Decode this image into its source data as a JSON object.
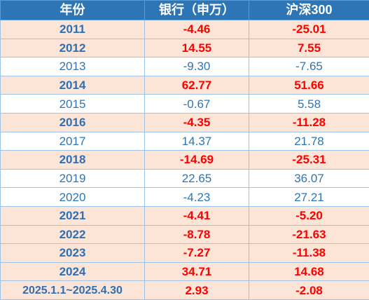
{
  "headers": [
    "年份",
    "银行（申万）",
    "沪深300"
  ],
  "rows": [
    {
      "year": "2011",
      "bank": "-4.46",
      "csi300": "-25.01",
      "highlight": true
    },
    {
      "year": "2012",
      "bank": "14.55",
      "csi300": "7.55",
      "highlight": true
    },
    {
      "year": "2013",
      "bank": "-9.30",
      "csi300": "-7.65",
      "highlight": false
    },
    {
      "year": "2014",
      "bank": "62.77",
      "csi300": "51.66",
      "highlight": true
    },
    {
      "year": "2015",
      "bank": "-0.67",
      "csi300": "5.58",
      "highlight": false
    },
    {
      "year": "2016",
      "bank": "-4.35",
      "csi300": "-11.28",
      "highlight": true
    },
    {
      "year": "2017",
      "bank": "14.37",
      "csi300": "21.78",
      "highlight": false
    },
    {
      "year": "2018",
      "bank": "-14.69",
      "csi300": "-25.31",
      "highlight": true
    },
    {
      "year": "2019",
      "bank": "22.65",
      "csi300": "36.07",
      "highlight": false
    },
    {
      "year": "2020",
      "bank": "-4.23",
      "csi300": "27.21",
      "highlight": false
    },
    {
      "year": "2021",
      "bank": "-4.41",
      "csi300": "-5.20",
      "highlight": true
    },
    {
      "year": "2022",
      "bank": "-8.78",
      "csi300": "-21.63",
      "highlight": true
    },
    {
      "year": "2023",
      "bank": "-7.27",
      "csi300": "-11.38",
      "highlight": true
    },
    {
      "year": "2024",
      "bank": "34.71",
      "csi300": "14.68",
      "highlight": true
    },
    {
      "year": "2025.1.1~2025.4.30",
      "bank": "2.93",
      "csi300": "-2.08",
      "highlight": true
    }
  ],
  "colors": {
    "header_bg": "#2e75b6",
    "highlight_row_bg": "#fce4d6",
    "highlight_value_text": "#ff0000",
    "plain_text": "#2e75b6"
  }
}
